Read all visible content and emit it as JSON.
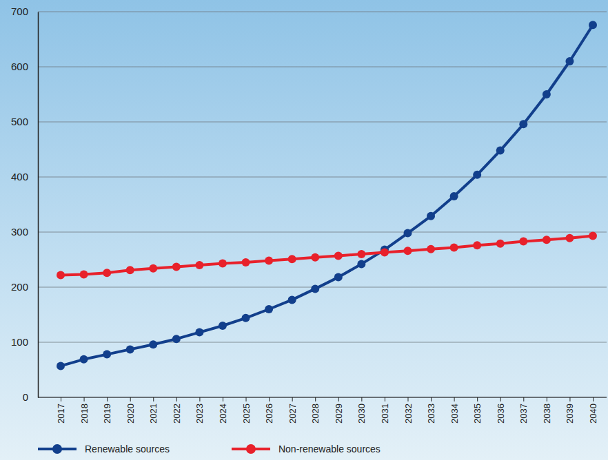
{
  "chart_data": {
    "type": "line",
    "categories": [
      "2017",
      "2018",
      "2019",
      "2020",
      "2021",
      "2022",
      "2023",
      "2024",
      "2025",
      "2026",
      "2027",
      "2028",
      "2029",
      "2030",
      "2031",
      "2032",
      "2033",
      "2034",
      "2035",
      "2036",
      "2037",
      "2038",
      "2039",
      "2040"
    ],
    "series": [
      {
        "name": "Renewable sources",
        "color": "#123f8c",
        "marker": "circle",
        "values": [
          57,
          69,
          78,
          87,
          96,
          106,
          118,
          130,
          144,
          160,
          177,
          197,
          218,
          242,
          268,
          298,
          329,
          365,
          404,
          448,
          496,
          550,
          610,
          676
        ]
      },
      {
        "name": "Non-renewable sources",
        "color": "#e8212b",
        "marker": "circle",
        "values": [
          222,
          223,
          226,
          231,
          234,
          237,
          240,
          243,
          245,
          248,
          251,
          254,
          257,
          260,
          263,
          266,
          269,
          272,
          276,
          279,
          283,
          286,
          289,
          293
        ]
      }
    ],
    "ylim": [
      0,
      700
    ],
    "yticks": [
      0,
      100,
      200,
      300,
      400,
      500,
      600,
      700
    ],
    "grid": true,
    "legend": "bottom-left"
  }
}
